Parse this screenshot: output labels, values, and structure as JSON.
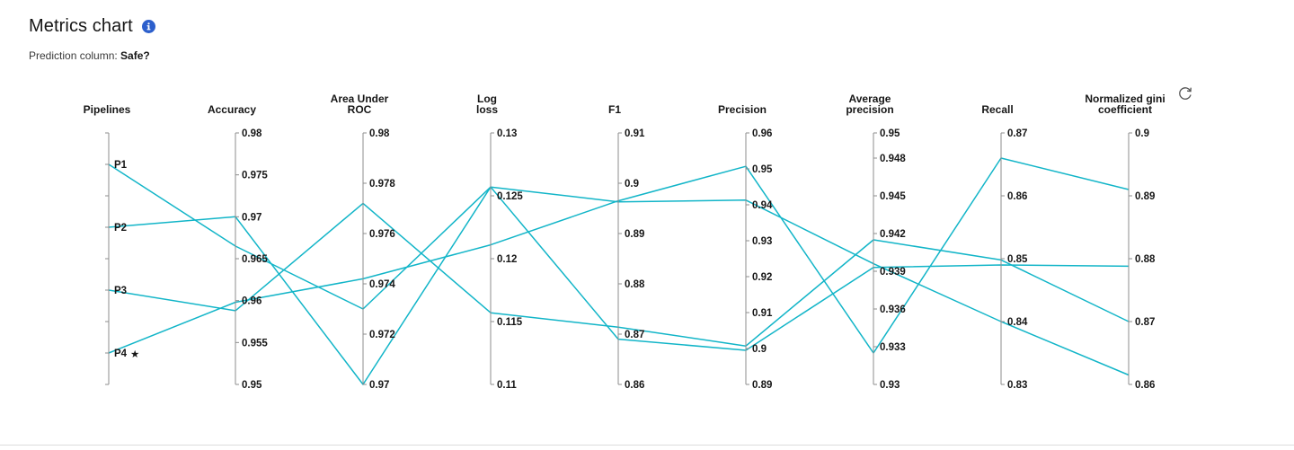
{
  "header": {
    "title": "Metrics chart",
    "subtitle_prefix": "Prediction column: ",
    "subtitle_value": "Safe?"
  },
  "icons": {
    "info": "info-icon",
    "refresh": "refresh-icon",
    "star": "star-icon"
  },
  "colors": {
    "line": "#12b5c8",
    "axis": "#8d8d8d",
    "info_icon": "#2c5fcc"
  },
  "chart_data": {
    "type": "parallel-coordinates",
    "pipelines_axis": {
      "title": [
        "Pipelines"
      ],
      "labels": [
        "P1",
        "P2",
        "P3",
        "P4"
      ],
      "starred": "P4"
    },
    "axes": [
      {
        "key": "accuracy",
        "title": [
          "Accuracy"
        ],
        "range": [
          0.95,
          0.98
        ],
        "ticks": [
          "0.98",
          "0.975",
          "0.97",
          "0.965",
          "0.96",
          "0.955",
          "0.95"
        ]
      },
      {
        "key": "auc",
        "title": [
          "Area Under",
          "ROC"
        ],
        "range": [
          0.97,
          0.98
        ],
        "ticks": [
          "0.98",
          "0.978",
          "0.976",
          "0.974",
          "0.972",
          "0.97"
        ]
      },
      {
        "key": "logloss",
        "title": [
          "Log",
          "loss"
        ],
        "range": [
          0.11,
          0.13
        ],
        "ticks": [
          "0.13",
          "0.125",
          "0.12",
          "0.115",
          "0.11"
        ]
      },
      {
        "key": "f1",
        "title": [
          "F1"
        ],
        "range": [
          0.86,
          0.91
        ],
        "ticks": [
          "0.91",
          "0.9",
          "0.89",
          "0.88",
          "0.87",
          "0.86"
        ]
      },
      {
        "key": "precision",
        "title": [
          "Precision"
        ],
        "range": [
          0.89,
          0.96
        ],
        "ticks": [
          "0.96",
          "0.95",
          "0.94",
          "0.93",
          "0.92",
          "0.91",
          "0.9",
          "0.89"
        ]
      },
      {
        "key": "avg_precision",
        "title": [
          "Average",
          "precision"
        ],
        "range": [
          0.93,
          0.95
        ],
        "ticks": [
          "0.95",
          "0.948",
          "0.945",
          "0.942",
          "0.939",
          "0.936",
          "0.933",
          "0.93"
        ],
        "tick_values": [
          0.95,
          0.948,
          0.945,
          0.942,
          0.939,
          0.936,
          0.933,
          0.93
        ]
      },
      {
        "key": "recall",
        "title": [
          "Recall"
        ],
        "range": [
          0.83,
          0.87
        ],
        "ticks": [
          "0.87",
          "0.86",
          "0.85",
          "0.84",
          "0.83"
        ]
      },
      {
        "key": "gini",
        "title": [
          "Normalized gini",
          "coefficient"
        ],
        "range": [
          0.86,
          0.9
        ],
        "ticks": [
          "0.9",
          "0.89",
          "0.88",
          "0.87",
          "0.86"
        ]
      }
    ],
    "series": [
      {
        "name": "P1",
        "values": {
          "accuracy": 0.9665,
          "auc": 0.973,
          "logloss": 0.1257,
          "f1": 0.8963,
          "precision": 0.9413,
          "avg_precision": 0.9396,
          "recall": 0.84,
          "gini": 0.8615
        }
      },
      {
        "name": "P2",
        "values": {
          "accuracy": 0.97,
          "auc": 0.97,
          "logloss": 0.1257,
          "f1": 0.869,
          "precision": 0.8995,
          "avg_precision": 0.9393,
          "recall": 0.849,
          "gini": 0.8788
        }
      },
      {
        "name": "P3",
        "values": {
          "accuracy": 0.9588,
          "auc": 0.9772,
          "logloss": 0.1157,
          "f1": 0.8714,
          "precision": 0.9007,
          "avg_precision": 0.9415,
          "recall": 0.8498,
          "gini": 0.87
        }
      },
      {
        "name": "P4",
        "values": {
          "accuracy": 0.9598,
          "auc": 0.9742,
          "logloss": 0.1211,
          "f1": 0.8965,
          "precision": 0.9507,
          "avg_precision": 0.9325,
          "recall": 0.866,
          "gini": 0.891
        }
      }
    ]
  }
}
